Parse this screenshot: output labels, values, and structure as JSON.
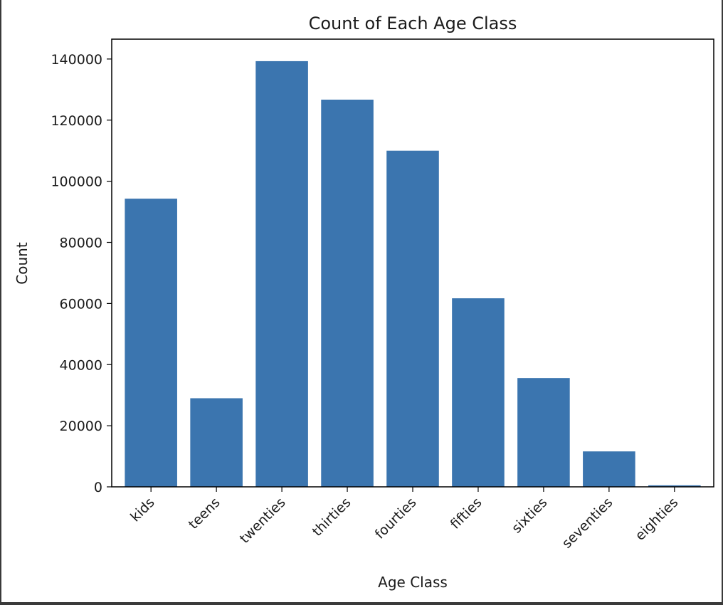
{
  "chart_data": {
    "type": "bar",
    "title": "Count of Each Age Class",
    "xlabel": "Age Class",
    "ylabel": "Count",
    "categories": [
      "kids",
      "teens",
      "twenties",
      "thirties",
      "fourties",
      "fifties",
      "sixties",
      "seventies",
      "eighties"
    ],
    "values": [
      94300,
      29000,
      139300,
      126700,
      110000,
      61700,
      35600,
      11600,
      500
    ],
    "ylim": [
      0,
      146500
    ],
    "yticks": [
      0,
      20000,
      40000,
      60000,
      80000,
      100000,
      120000,
      140000
    ],
    "bar_color": "#3b75af",
    "grid": false,
    "legend": "none"
  }
}
